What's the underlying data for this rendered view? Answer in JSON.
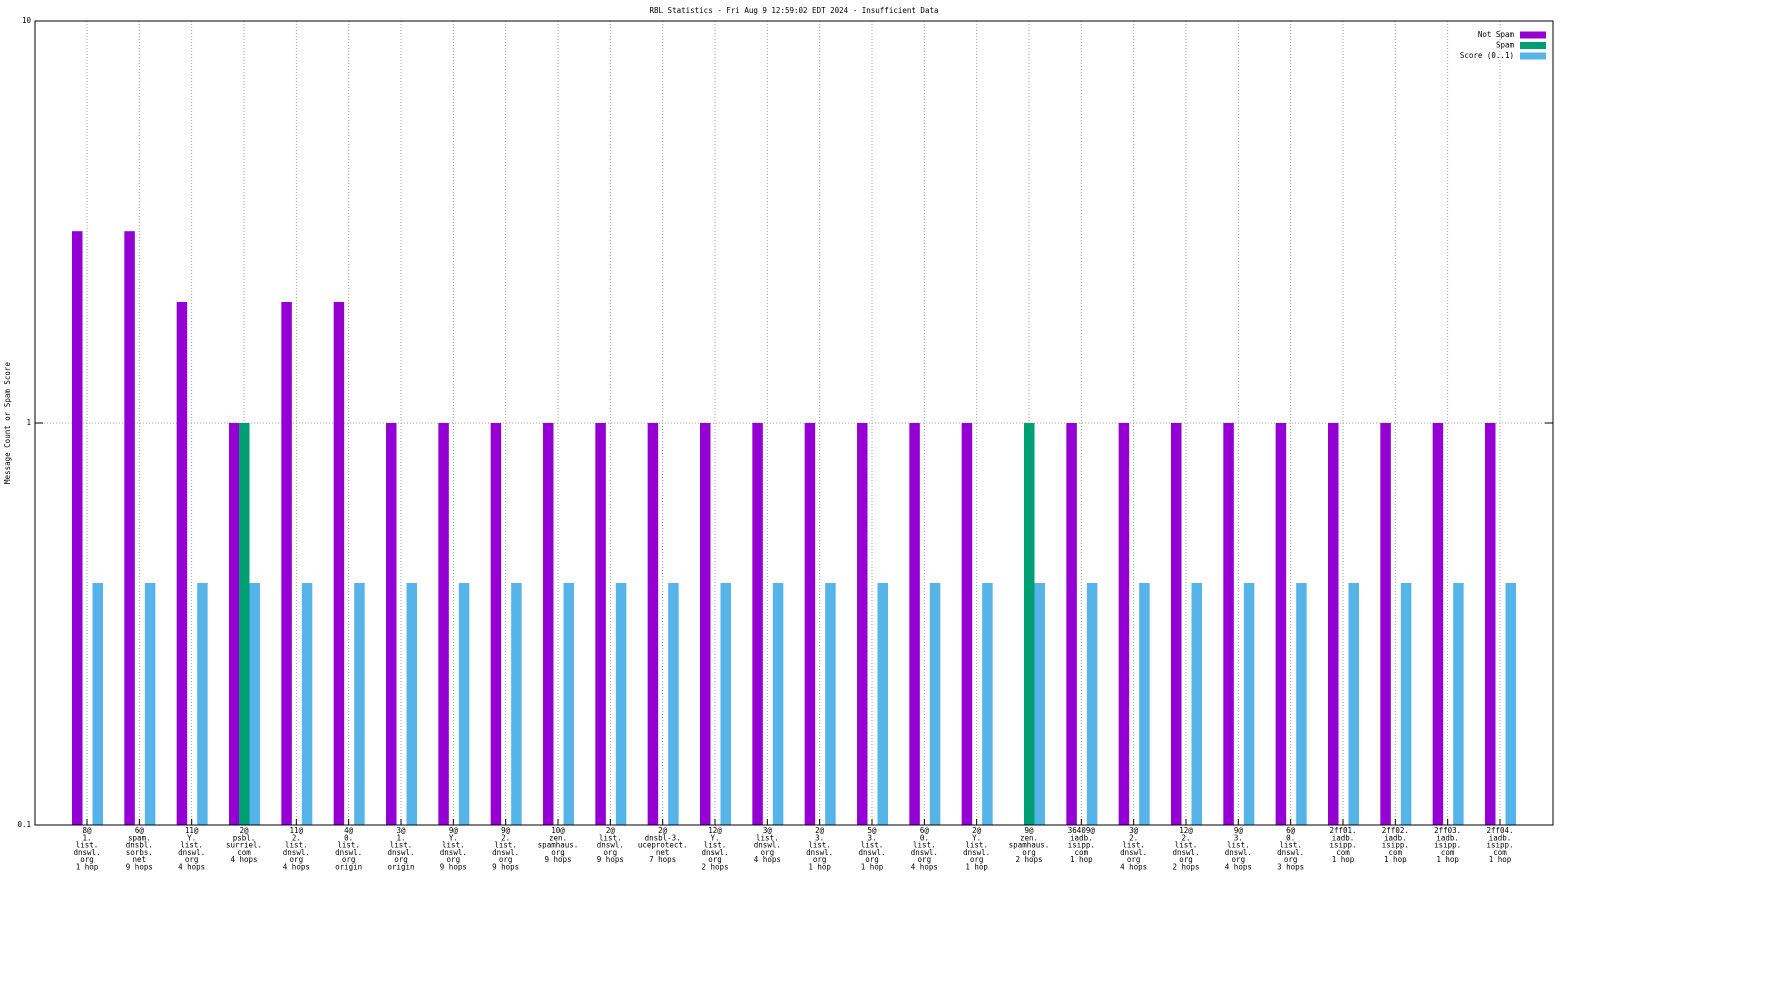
{
  "chart_data": {
    "type": "bar",
    "title": "RBL Statistics - Fri Aug  9 12:59:02 EDT 2024 - Insufficient Data",
    "y_label": "Message Count or Spam Score",
    "log_y": true,
    "grid": true,
    "legend": "top-right",
    "ylim": [
      0.1,
      10
    ],
    "yticks": [
      0.1,
      1,
      10
    ],
    "categories": [
      [
        "8@",
        "1.",
        "list.",
        "dnswl.",
        "org",
        "1 hop"
      ],
      [
        "6@",
        "spam.",
        "dnsbl.",
        "sorbs.",
        "net",
        "9 hops"
      ],
      [
        "11@",
        "Y.",
        "list.",
        "dnswl.",
        "org",
        "4 hops"
      ],
      [
        "2@",
        "psbl.",
        "surriel.",
        "com",
        "4 hops"
      ],
      [
        "11@",
        "2.",
        "list.",
        "dnswl.",
        "org",
        "4 hops"
      ],
      [
        "4@",
        "0.",
        "list.",
        "dnswl.",
        "org",
        "origin"
      ],
      [
        "3@",
        "1.",
        "list.",
        "dnswl.",
        "org",
        "origin"
      ],
      [
        "9@",
        "Y.",
        "list.",
        "dnswl.",
        "org",
        "9 hops"
      ],
      [
        "9@",
        "2.",
        "list.",
        "dnswl.",
        "org",
        "9 hops"
      ],
      [
        "10@",
        "zen.",
        "spamhaus.",
        "org",
        "9 hops"
      ],
      [
        "2@",
        "list.",
        "dnswl.",
        "org",
        "9 hops"
      ],
      [
        "2@",
        "dnsbl-3.",
        "uceprotect.",
        "net",
        "7 hops"
      ],
      [
        "12@",
        "Y.",
        "list.",
        "dnswl.",
        "org",
        "2 hops"
      ],
      [
        "3@",
        "list.",
        "dnswl.",
        "org",
        "4 hops"
      ],
      [
        "2@",
        "3.",
        "list.",
        "dnswl.",
        "org",
        "1 hop"
      ],
      [
        "5@",
        "3.",
        "list.",
        "dnswl.",
        "org",
        "1 hop"
      ],
      [
        "6@",
        "0.",
        "list.",
        "dnswl.",
        "org",
        "4 hops"
      ],
      [
        "2@",
        "Y.",
        "list.",
        "dnswl.",
        "org",
        "1 hop"
      ],
      [
        "9@",
        "zen.",
        "spamhaus.",
        "org",
        "2 hops"
      ],
      [
        "36409@",
        "iadb.",
        "isipp.",
        "com",
        "1 hop"
      ],
      [
        "3@",
        "2.",
        "list.",
        "dnswl.",
        "org",
        "4 hops"
      ],
      [
        "12@",
        "2.",
        "list.",
        "dnswl.",
        "org",
        "2 hops"
      ],
      [
        "9@",
        "3.",
        "list.",
        "dnswl.",
        "org",
        "4 hops"
      ],
      [
        "6@",
        "0.",
        "list.",
        "dnswl.",
        "org",
        "3 hops"
      ],
      [
        "2ff01.",
        "iadb.",
        "isipp.",
        "com",
        "1 hop"
      ],
      [
        "2ff02.",
        "iadb.",
        "isipp.",
        "com",
        "1 hop"
      ],
      [
        "2ff03.",
        "iadb.",
        "isipp.",
        "com",
        "1 hop"
      ],
      [
        "2ff04.",
        "iadb.",
        "isipp.",
        "com",
        "1 hop"
      ]
    ],
    "series": [
      {
        "name": "Not Spam",
        "color": "#9400d3",
        "values": [
          3,
          3,
          2,
          1,
          2,
          2,
          1,
          1,
          1,
          1,
          1,
          1,
          1,
          1,
          1,
          1,
          1,
          1,
          null,
          1,
          1,
          1,
          1,
          1,
          1,
          1,
          1,
          1
        ]
      },
      {
        "name": "Spam",
        "color": "#009e73",
        "values": [
          null,
          null,
          null,
          1,
          null,
          null,
          null,
          null,
          null,
          null,
          null,
          null,
          null,
          null,
          null,
          null,
          null,
          null,
          1,
          null,
          null,
          null,
          null,
          null,
          null,
          null,
          null,
          null
        ]
      },
      {
        "name": "Score (0..1)",
        "color": "#56b4e9",
        "values": [
          0.4,
          0.4,
          0.4,
          0.4,
          0.4,
          0.4,
          0.4,
          0.4,
          0.4,
          0.4,
          0.4,
          0.4,
          0.4,
          0.4,
          0.4,
          0.4,
          0.4,
          0.4,
          0.4,
          0.4,
          0.4,
          0.4,
          0.4,
          0.4,
          0.4,
          0.4,
          0.4,
          0.4
        ]
      }
    ]
  }
}
